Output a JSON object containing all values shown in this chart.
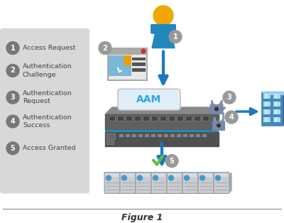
{
  "title": "Figure 1",
  "bg_color": "#ffffff",
  "legend_bg": "#d8d8d8",
  "legend_items": [
    {
      "num": "1",
      "text": "Access Request"
    },
    {
      "num": "2",
      "text": "Authentication\nChallenge"
    },
    {
      "num": "3",
      "text": "Authentication\nRequest"
    },
    {
      "num": "4",
      "text": "Authentication\nSuccess"
    },
    {
      "num": "5",
      "text": "Access Granted"
    }
  ],
  "arrow_color": "#1a7abf",
  "step_circle_color": "#777777",
  "step_circle_text_color": "#ffffff",
  "aam_label_color": "#29a8e0",
  "figure_label_color": "#333333",
  "person_head_color": "#f0a800",
  "person_body_color": "#2288bb",
  "check_color": "#66bb44",
  "building_color": "#4488bb",
  "building_dark": "#336699",
  "building_window": "#88ccee",
  "lock_color": "#8899aa",
  "server_body": "#c8cdd4",
  "server_led": "#4499cc"
}
